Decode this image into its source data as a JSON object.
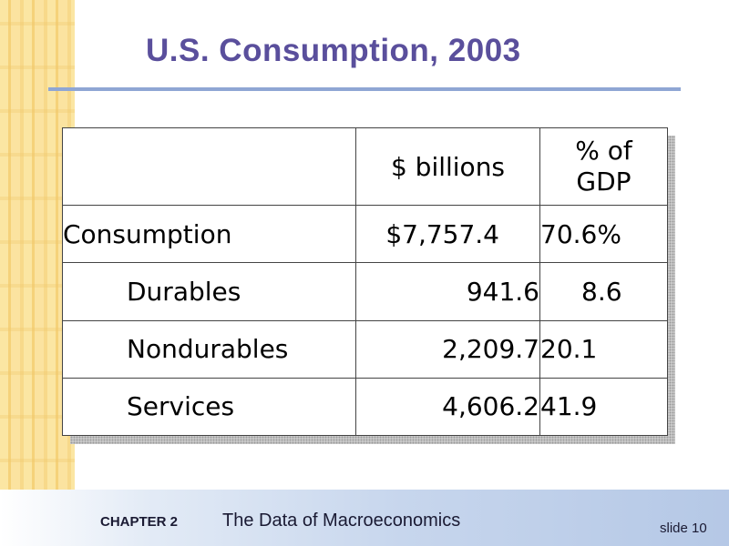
{
  "slide": {
    "title": "U.S. Consumption, 2003"
  },
  "table": {
    "headers": {
      "blank": "",
      "billions": "$ billions",
      "pct_line1": "% of",
      "pct_line2": "GDP"
    },
    "rows": [
      {
        "label": "Consumption",
        "billions": "$7,757.4",
        "pct": "70.6%"
      },
      {
        "label": "Durables",
        "billions": "941.6",
        "pct": "8.6"
      },
      {
        "label": "Nondurables",
        "billions": "2,209.7",
        "pct": "20.1"
      },
      {
        "label": "Services",
        "billions": "4,606.2",
        "pct": "41.9"
      }
    ]
  },
  "footer": {
    "chapter": "CHAPTER 2",
    "chapter_title": "The Data of Macroeconomics",
    "slide_number": "slide 10"
  },
  "colors": {
    "title": "#5a4f9c",
    "rule": "#8fa6d4",
    "band": "#fbe6a3"
  }
}
